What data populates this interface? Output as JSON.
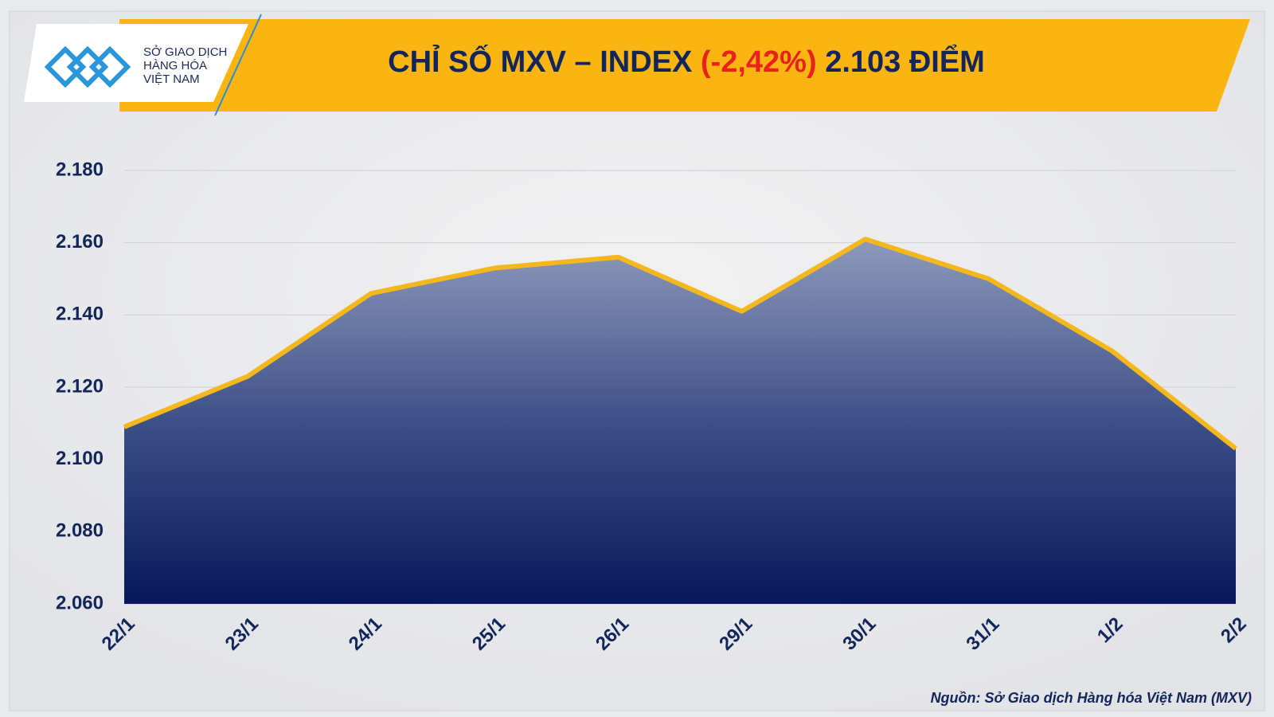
{
  "chart_data": {
    "type": "area",
    "title": {
      "prefix": "CHỈ SỐ MXV – INDEX",
      "change": "(-2,42%)",
      "suffix": "2.103 ĐIỂM"
    },
    "logo": [
      "SỞ GIAO DỊCH",
      "HÀNG HÓA",
      "VIỆT NAM"
    ],
    "source": "Nguồn: Sở Giao dịch Hàng hóa Việt Nam (MXV)",
    "categories": [
      "22/1",
      "23/1",
      "24/1",
      "25/1",
      "26/1",
      "29/1",
      "30/1",
      "31/1",
      "1/2",
      "2/2"
    ],
    "values": [
      2109,
      2123,
      2146,
      2153,
      2156,
      2141,
      2161,
      2150,
      2130,
      2103
    ],
    "color": "#f5b81c",
    "ylim": [
      2060,
      2180
    ],
    "yticks": [
      {
        "value": 2060,
        "label": "2.060"
      },
      {
        "value": 2080,
        "label": "2.080"
      },
      {
        "value": 2100,
        "label": "2.100"
      },
      {
        "value": 2120,
        "label": "2.120"
      },
      {
        "value": 2140,
        "label": "2.140"
      },
      {
        "value": 2160,
        "label": "2.160"
      },
      {
        "value": 2180,
        "label": "2.180"
      }
    ],
    "grid": true
  }
}
